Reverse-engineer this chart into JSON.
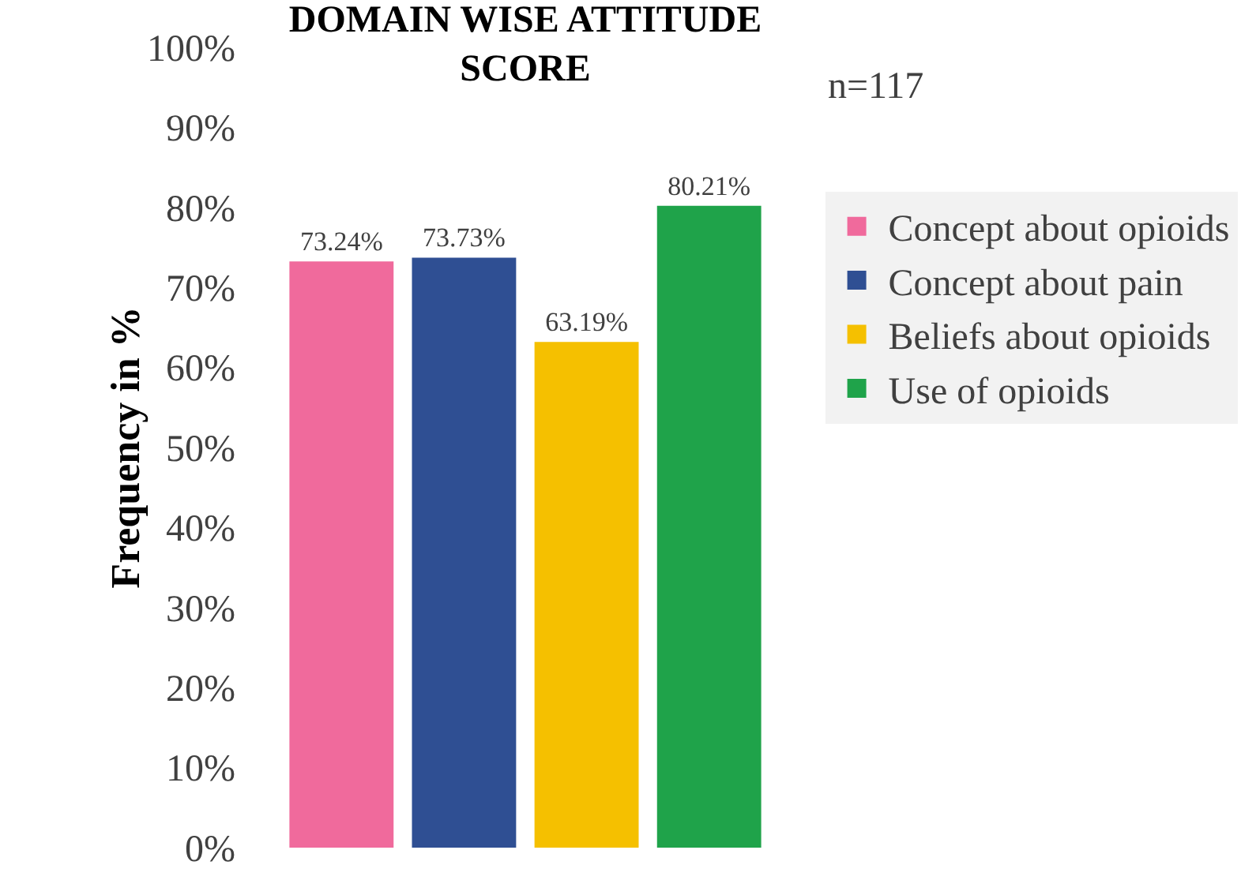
{
  "chart_data": {
    "type": "bar",
    "title": "DOMAIN WISE ATTITUDE SCORE",
    "ylabel": "Frequency in %",
    "annotations": [
      "n=117"
    ],
    "categories": [
      null
    ],
    "series": [
      {
        "name": "Concept about opioids",
        "color": "#f06a9c",
        "values": [
          73.24
        ],
        "value_labels": [
          "73.24%"
        ]
      },
      {
        "name": "Concept about pain",
        "color": "#2f4f93",
        "values": [
          73.73
        ],
        "value_labels": [
          "73.73%"
        ]
      },
      {
        "name": "Beliefs about opioids",
        "color": "#f5c000",
        "values": [
          63.19
        ],
        "value_labels": [
          "63.19%"
        ]
      },
      {
        "name": "Use of opioids",
        "color": "#1fa34a",
        "values": [
          80.21
        ],
        "value_labels": [
          "80.21%"
        ]
      }
    ],
    "ylim": [
      0,
      100
    ],
    "yticks": [
      {
        "value": 0,
        "label": "0%"
      },
      {
        "value": 10,
        "label": "10%"
      },
      {
        "value": 20,
        "label": "20%"
      },
      {
        "value": 30,
        "label": "30%"
      },
      {
        "value": 40,
        "label": "40%"
      },
      {
        "value": 50,
        "label": "50%"
      },
      {
        "value": 60,
        "label": "60%"
      },
      {
        "value": 70,
        "label": "70%"
      },
      {
        "value": 80,
        "label": "80%"
      },
      {
        "value": 90,
        "label": "90%"
      },
      {
        "value": 100,
        "label": "100%"
      }
    ],
    "tick_labels": "y",
    "grid": false,
    "legend": "right"
  }
}
